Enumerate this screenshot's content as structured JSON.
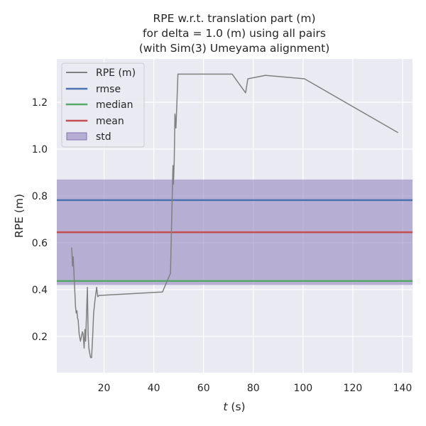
{
  "chart_data": {
    "type": "line",
    "title_lines": [
      "RPE w.r.t. translation part (m)",
      "for delta = 1.0 (m) using all pairs",
      "(with Sim(3) Umeyama alignment)"
    ],
    "xlabel_var": "t",
    "xlabel_unit": " (s)",
    "ylabel": "RPE (m)",
    "xlim": [
      1,
      144
    ],
    "ylim": [
      0.045,
      1.385
    ],
    "xticks": [
      20,
      40,
      60,
      80,
      100,
      120,
      140
    ],
    "yticks": [
      0.2,
      0.4,
      0.6,
      0.8,
      1.0,
      1.2
    ],
    "ytick_labels": [
      "0.2",
      "0.4",
      "0.6",
      "0.8",
      "1.0",
      "1.2"
    ],
    "grid": true,
    "legend_position": "top-left",
    "series": [
      {
        "name": "RPE (m)",
        "color": "#808080",
        "x": [
          7.0,
          7.3,
          7.6,
          8.0,
          8.5,
          8.8,
          9.1,
          9.3,
          9.6,
          10.0,
          10.5,
          10.9,
          11.3,
          11.6,
          12.0,
          12.3,
          12.6,
          12.9,
          13.3,
          13.6,
          13.9,
          14.2,
          14.6,
          15.0,
          15.4,
          15.8,
          16.3,
          17.0,
          17.5,
          18.0,
          43.5,
          46.7,
          47.7,
          47.9,
          48.2,
          48.5,
          48.9,
          49.3,
          49.7,
          71.5,
          76.9,
          77.8,
          84.9,
          100.6,
          138.2
        ],
        "y": [
          0.58,
          0.5,
          0.54,
          0.45,
          0.33,
          0.3,
          0.31,
          0.28,
          0.27,
          0.21,
          0.18,
          0.2,
          0.22,
          0.21,
          0.15,
          0.23,
          0.18,
          0.28,
          0.41,
          0.21,
          0.15,
          0.13,
          0.11,
          0.11,
          0.2,
          0.3,
          0.35,
          0.41,
          0.37,
          0.375,
          0.39,
          0.47,
          0.93,
          0.85,
          0.95,
          1.15,
          1.09,
          1.2,
          1.32,
          1.32,
          1.24,
          1.3,
          1.315,
          1.3,
          1.07
        ]
      }
    ],
    "stats": [
      {
        "name": "rmse",
        "value": 0.782,
        "color": "#4c72b0"
      },
      {
        "name": "median",
        "value": 0.437,
        "color": "#55a868"
      },
      {
        "name": "mean",
        "value": 0.645,
        "color": "#c44e52"
      }
    ],
    "std": {
      "name": "std",
      "low": 0.42,
      "high": 0.87,
      "color": "#8172b3"
    }
  }
}
